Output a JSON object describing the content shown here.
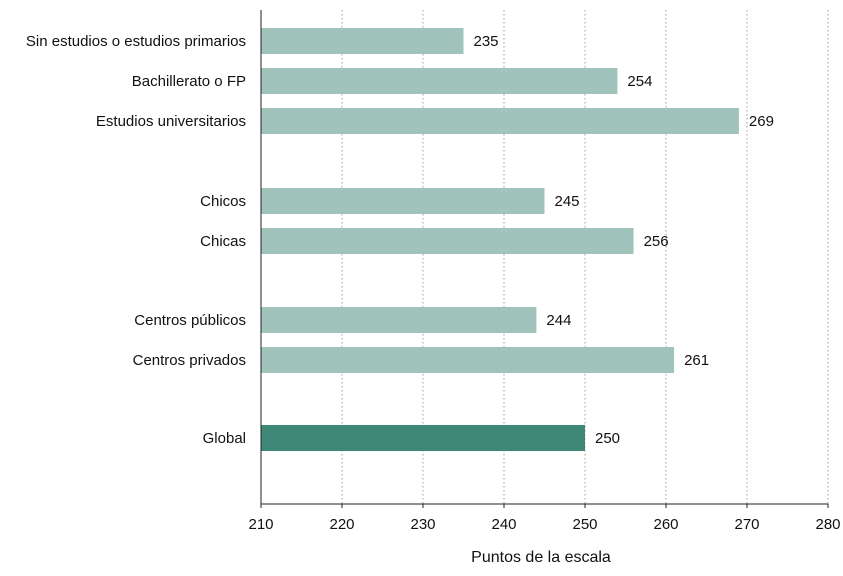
{
  "chart_data": {
    "type": "bar",
    "orientation": "horizontal",
    "title": "",
    "xlabel": "Puntos de la escala",
    "ylabel": "",
    "xlim": [
      210,
      280
    ],
    "x_ticks": [
      "210",
      "220",
      "230",
      "240",
      "250",
      "260",
      "270",
      "280"
    ],
    "grid": "vertical dotted",
    "categories": [
      "Sin estudios o estudios primarios",
      "Bachillerato o FP",
      "Estudios universitarios",
      "Chicos",
      "Chicas",
      "Centros públicos",
      "Centros privados",
      "Global"
    ],
    "values": [
      235,
      254,
      269,
      245,
      256,
      244,
      261,
      250
    ],
    "value_labels": [
      "235",
      "254",
      "269",
      "245",
      "256",
      "244",
      "261",
      "250"
    ],
    "groups": [
      [
        0,
        1,
        2
      ],
      [
        3,
        4
      ],
      [
        5,
        6
      ],
      [
        7
      ]
    ],
    "bar_color": "#a0c4bc",
    "highlight_color": "#3f8878",
    "highlight_category": "Global"
  }
}
